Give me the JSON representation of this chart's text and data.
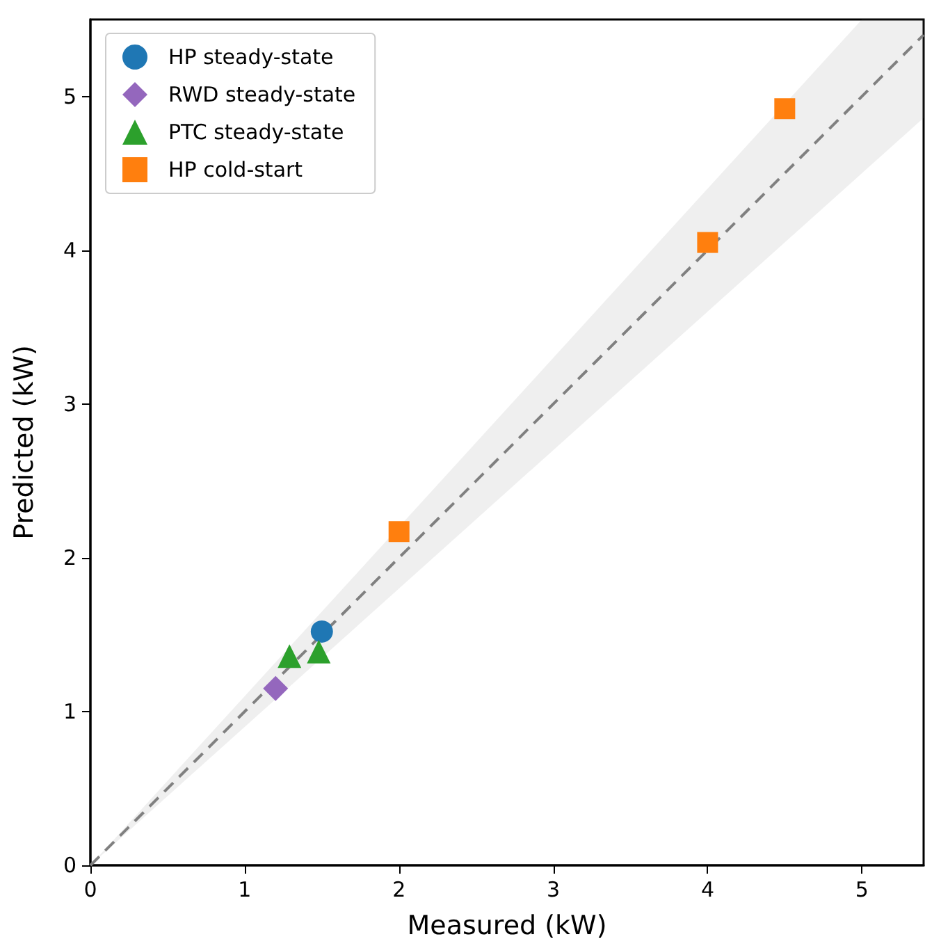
{
  "chart_data": {
    "type": "scatter",
    "xlabel": "Measured (kW)",
    "ylabel": "Predicted (kW)",
    "xlim": [
      0,
      5.4
    ],
    "ylim": [
      0,
      5.5
    ],
    "xticks": [
      0,
      1,
      2,
      3,
      4,
      5
    ],
    "yticks": [
      0,
      1,
      2,
      3,
      4,
      5
    ],
    "grid": false,
    "legend": "top left",
    "series": [
      {
        "type": "line",
        "x": [
          0,
          5,
          5.4
        ],
        "values": [
          0,
          5,
          5.4
        ],
        "lower": [
          0,
          4.5,
          4.86
        ],
        "upper": [
          0,
          5.5,
          5.5
        ],
        "color": "#808080",
        "line_style": "dashed",
        "marker": "none"
      },
      {
        "name": "HP steady-state",
        "color": "#1f77b4",
        "marker": "circle",
        "x": [
          1.5
        ],
        "values": [
          1.52
        ]
      },
      {
        "name": "RWD steady-state",
        "color": "#9467bd",
        "marker": "diamond",
        "x": [
          1.2
        ],
        "values": [
          1.15
        ]
      },
      {
        "name": "PTC steady-state",
        "color": "#2ca02c",
        "marker": "triangle",
        "x": [
          1.29,
          1.48
        ],
        "values": [
          1.36,
          1.39
        ]
      },
      {
        "name": "HP cold-start",
        "color": "#ff7f0e",
        "marker": "square",
        "x": [
          2.0,
          4.0,
          4.5
        ],
        "values": [
          2.17,
          4.05,
          4.92
        ]
      }
    ]
  }
}
